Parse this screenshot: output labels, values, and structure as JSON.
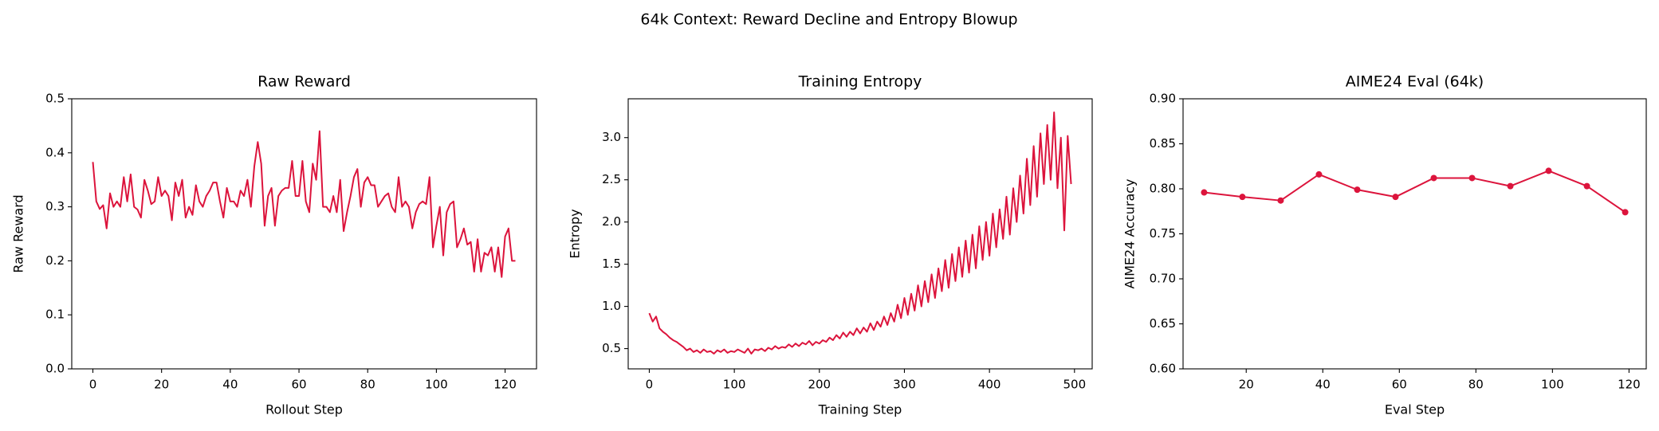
{
  "title": "64k Context: Reward Decline and Entropy Blowup",
  "chart_data": [
    {
      "type": "line",
      "title": "Raw Reward",
      "xlabel": "Rollout Step",
      "ylabel": "Raw Reward",
      "color": "#dc143c",
      "markers": false,
      "xlim": [
        -6.15,
        129.15
      ],
      "ylim": [
        0,
        0.5
      ],
      "xticks": [
        0,
        20,
        40,
        60,
        80,
        100,
        120
      ],
      "yticks": [
        {
          "value": 0,
          "label": "0.0"
        },
        0.1,
        0.2,
        0.3,
        0.4,
        0.5
      ],
      "x": [
        0,
        1,
        2,
        3,
        4,
        5,
        6,
        7,
        8,
        9,
        10,
        11,
        12,
        13,
        14,
        15,
        16,
        17,
        18,
        19,
        20,
        21,
        22,
        23,
        24,
        25,
        26,
        27,
        28,
        29,
        30,
        31,
        32,
        33,
        34,
        35,
        36,
        37,
        38,
        39,
        40,
        41,
        42,
        43,
        44,
        45,
        46,
        47,
        48,
        49,
        50,
        51,
        52,
        53,
        54,
        55,
        56,
        57,
        58,
        59,
        60,
        61,
        62,
        63,
        64,
        65,
        66,
        67,
        68,
        69,
        70,
        71,
        72,
        73,
        74,
        75,
        76,
        77,
        78,
        79,
        80,
        81,
        82,
        83,
        84,
        85,
        86,
        87,
        88,
        89,
        90,
        91,
        92,
        93,
        94,
        95,
        96,
        97,
        98,
        99,
        100,
        101,
        102,
        103,
        104,
        105,
        106,
        107,
        108,
        109,
        110,
        111,
        112,
        113,
        114,
        115,
        116,
        117,
        118,
        119,
        120,
        121,
        122,
        123
      ],
      "values": [
        0.383,
        0.31,
        0.296,
        0.303,
        0.26,
        0.325,
        0.3,
        0.31,
        0.3,
        0.355,
        0.31,
        0.36,
        0.3,
        0.295,
        0.28,
        0.35,
        0.33,
        0.305,
        0.31,
        0.355,
        0.32,
        0.33,
        0.32,
        0.275,
        0.345,
        0.32,
        0.35,
        0.28,
        0.3,
        0.285,
        0.34,
        0.31,
        0.3,
        0.32,
        0.33,
        0.345,
        0.345,
        0.31,
        0.28,
        0.335,
        0.31,
        0.31,
        0.3,
        0.33,
        0.32,
        0.35,
        0.3,
        0.375,
        0.42,
        0.38,
        0.265,
        0.32,
        0.335,
        0.265,
        0.32,
        0.33,
        0.335,
        0.335,
        0.385,
        0.32,
        0.32,
        0.385,
        0.31,
        0.29,
        0.38,
        0.35,
        0.44,
        0.3,
        0.3,
        0.29,
        0.32,
        0.29,
        0.35,
        0.255,
        0.29,
        0.32,
        0.355,
        0.37,
        0.3,
        0.345,
        0.355,
        0.34,
        0.34,
        0.3,
        0.31,
        0.32,
        0.325,
        0.3,
        0.29,
        0.355,
        0.3,
        0.31,
        0.3,
        0.26,
        0.29,
        0.305,
        0.31,
        0.305,
        0.355,
        0.225,
        0.265,
        0.3,
        0.21,
        0.29,
        0.305,
        0.31,
        0.225,
        0.24,
        0.26,
        0.23,
        0.235,
        0.18,
        0.24,
        0.18,
        0.215,
        0.21,
        0.225,
        0.18,
        0.225,
        0.17,
        0.245,
        0.26,
        0.2,
        0.2
      ]
    },
    {
      "type": "line",
      "title": "Training Entropy",
      "xlabel": "Training Step",
      "ylabel": "Entropy",
      "color": "#dc143c",
      "markers": false,
      "xlim": [
        -24.8,
        520.8
      ],
      "ylim": [
        0.26,
        3.46
      ],
      "xticks": [
        0,
        100,
        200,
        300,
        400,
        500
      ],
      "yticks": [
        0.5,
        {
          "value": 1,
          "label": "1.0"
        },
        1.5,
        {
          "value": 2,
          "label": "2.0"
        },
        2.5,
        {
          "value": 3,
          "label": "3.0"
        }
      ],
      "x": [
        0,
        4,
        8,
        12,
        16,
        20,
        24,
        28,
        32,
        36,
        40,
        44,
        48,
        52,
        56,
        60,
        64,
        68,
        72,
        76,
        80,
        84,
        88,
        92,
        96,
        100,
        104,
        108,
        112,
        116,
        120,
        124,
        128,
        132,
        136,
        140,
        144,
        148,
        152,
        156,
        160,
        164,
        168,
        172,
        176,
        180,
        184,
        188,
        192,
        196,
        200,
        204,
        208,
        212,
        216,
        220,
        224,
        228,
        232,
        236,
        240,
        244,
        248,
        252,
        256,
        260,
        264,
        268,
        272,
        276,
        280,
        284,
        288,
        292,
        296,
        300,
        304,
        308,
        312,
        316,
        320,
        324,
        328,
        332,
        336,
        340,
        344,
        348,
        352,
        356,
        360,
        364,
        368,
        372,
        376,
        380,
        384,
        388,
        392,
        396,
        400,
        404,
        408,
        412,
        416,
        420,
        424,
        428,
        432,
        436,
        440,
        444,
        448,
        452,
        456,
        460,
        464,
        468,
        472,
        476,
        480,
        484,
        488,
        492,
        496
      ],
      "values": [
        0.92,
        0.82,
        0.88,
        0.74,
        0.7,
        0.67,
        0.63,
        0.6,
        0.58,
        0.55,
        0.52,
        0.48,
        0.5,
        0.46,
        0.48,
        0.45,
        0.49,
        0.46,
        0.47,
        0.44,
        0.48,
        0.46,
        0.49,
        0.45,
        0.47,
        0.46,
        0.49,
        0.47,
        0.45,
        0.5,
        0.44,
        0.49,
        0.48,
        0.5,
        0.47,
        0.51,
        0.49,
        0.53,
        0.5,
        0.52,
        0.51,
        0.55,
        0.52,
        0.56,
        0.53,
        0.57,
        0.55,
        0.59,
        0.54,
        0.58,
        0.56,
        0.6,
        0.58,
        0.63,
        0.6,
        0.66,
        0.62,
        0.69,
        0.64,
        0.7,
        0.66,
        0.74,
        0.68,
        0.75,
        0.7,
        0.8,
        0.72,
        0.82,
        0.76,
        0.88,
        0.78,
        0.92,
        0.82,
        1.02,
        0.86,
        1.1,
        0.9,
        1.15,
        0.95,
        1.25,
        1.0,
        1.3,
        1.05,
        1.38,
        1.1,
        1.45,
        1.18,
        1.55,
        1.22,
        1.62,
        1.3,
        1.7,
        1.35,
        1.78,
        1.4,
        1.85,
        1.45,
        1.95,
        1.55,
        2.0,
        1.6,
        2.1,
        1.7,
        2.15,
        1.8,
        2.3,
        1.85,
        2.4,
        2.0,
        2.55,
        2.1,
        2.75,
        2.2,
        2.9,
        2.3,
        3.05,
        2.45,
        3.15,
        2.5,
        3.3,
        2.4,
        3.0,
        1.9,
        3.02,
        2.45
      ]
    },
    {
      "type": "line",
      "title": "AIME24 Eval (64k)",
      "xlabel": "Eval Step",
      "ylabel": "AIME24 Accuracy",
      "color": "#dc143c",
      "markers": true,
      "xlim": [
        3.5,
        124.5
      ],
      "ylim": [
        0.6,
        0.9
      ],
      "xticks": [
        20,
        40,
        60,
        80,
        100,
        120
      ],
      "yticks": [
        {
          "value": 0.6,
          "label": "0.60"
        },
        0.65,
        {
          "value": 0.7,
          "label": "0.70"
        },
        0.75,
        {
          "value": 0.8,
          "label": "0.80"
        },
        0.85,
        {
          "value": 0.9,
          "label": "0.90"
        }
      ],
      "x": [
        9,
        19,
        29,
        39,
        49,
        59,
        69,
        79,
        89,
        99,
        109,
        119
      ],
      "values": [
        0.796,
        0.791,
        0.787,
        0.816,
        0.799,
        0.791,
        0.812,
        0.812,
        0.803,
        0.82,
        0.803,
        0.774
      ]
    }
  ]
}
